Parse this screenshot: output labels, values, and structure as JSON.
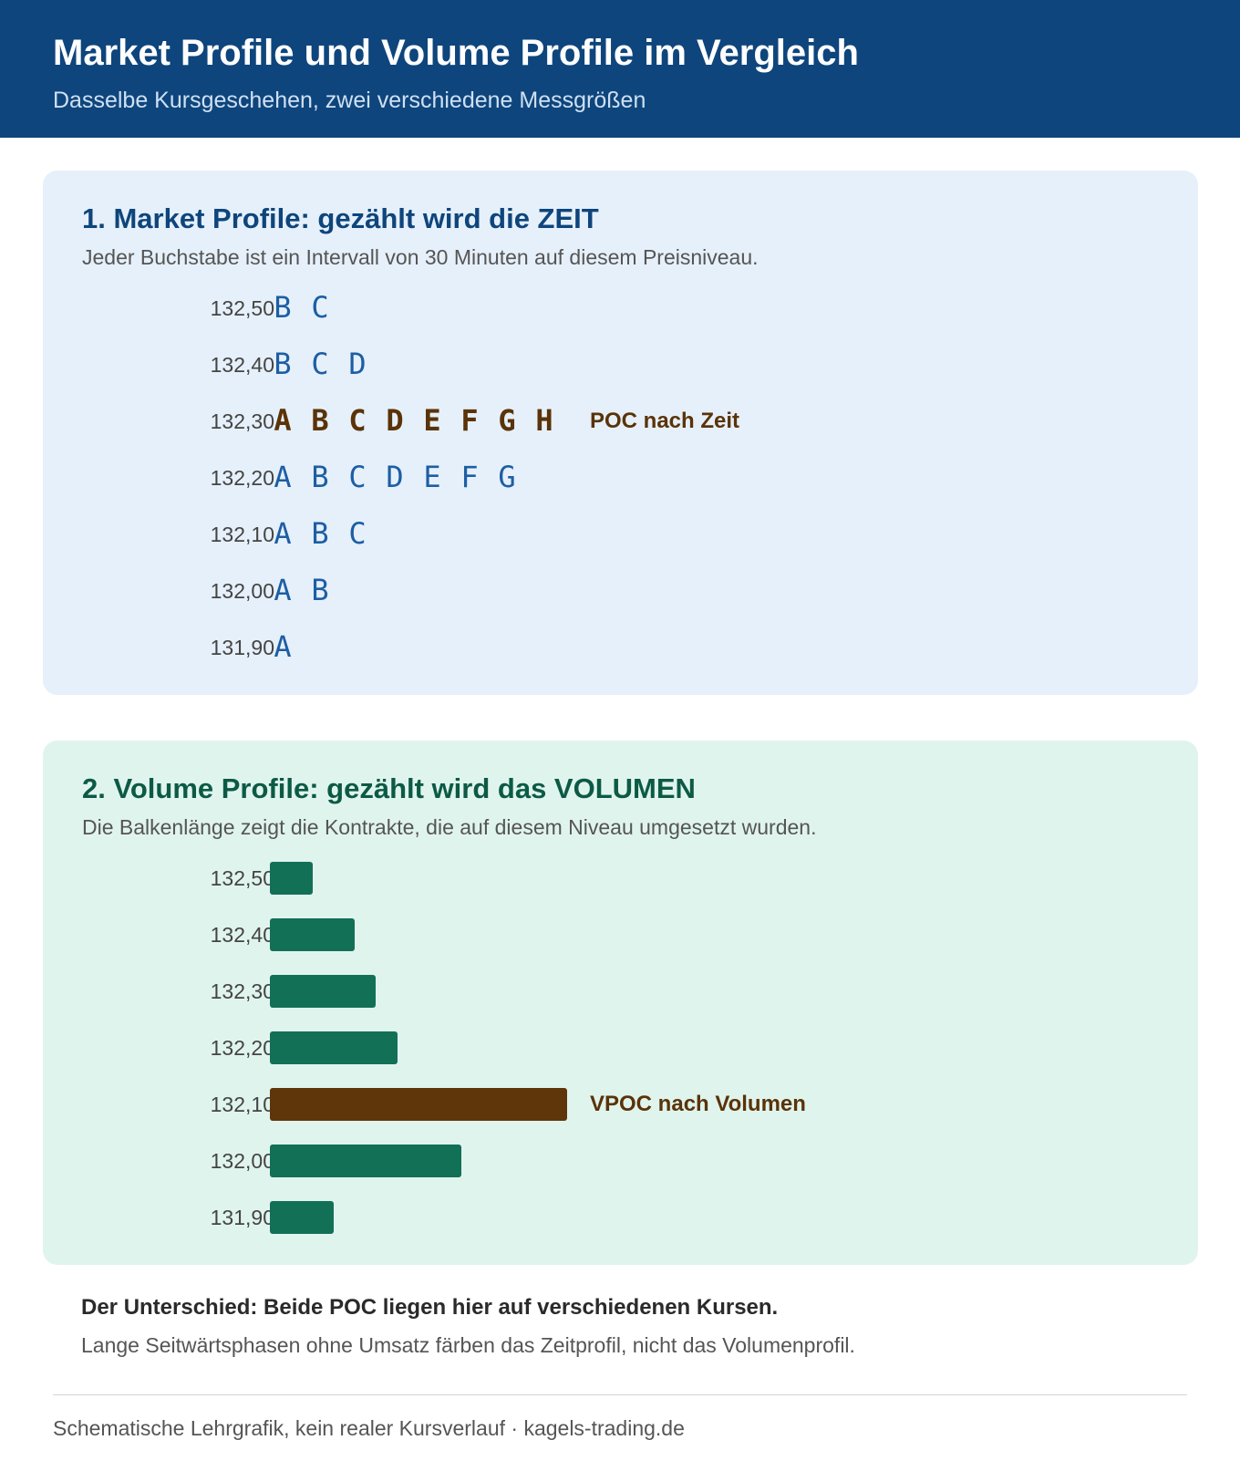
{
  "header": {
    "title": "Market Profile und Volume Profile im Vergleich",
    "subtitle": "Dasselbe Kursgeschehen, zwei verschiedene Messgrößen"
  },
  "chart_data": [
    {
      "type": "table",
      "title": "1. Market Profile: gezählt wird die ZEIT",
      "subtitle": "Jeder Buchstabe ist ein Intervall von 30 Minuten auf diesem Preisniveau.",
      "rows": [
        {
          "price": "132,50",
          "letters": [
            "B",
            "C"
          ]
        },
        {
          "price": "132,40",
          "letters": [
            "B",
            "C",
            "D"
          ]
        },
        {
          "price": "132,30",
          "letters": [
            "A",
            "B",
            "C",
            "D",
            "E",
            "F",
            "G",
            "H"
          ],
          "poc": true
        },
        {
          "price": "132,20",
          "letters": [
            "A",
            "B",
            "C",
            "D",
            "E",
            "F",
            "G"
          ]
        },
        {
          "price": "132,10",
          "letters": [
            "A",
            "B",
            "C"
          ]
        },
        {
          "price": "132,00",
          "letters": [
            "A",
            "B"
          ]
        },
        {
          "price": "131,90",
          "letters": [
            "A"
          ]
        }
      ],
      "poc_label": "POC nach Zeit",
      "colors": {
        "letter": "#1d5ea4",
        "poc": "#5a3308"
      }
    },
    {
      "type": "bar",
      "orientation": "horizontal",
      "title": "2. Volume Profile: gezählt wird das VOLUMEN",
      "subtitle": "Die Balkenlänge zeigt die Kontrakte, die auf diesem Niveau umgesetzt wurden.",
      "categories": [
        "132,50",
        "132,40",
        "132,30",
        "132,20",
        "132,10",
        "132,00",
        "131,90"
      ],
      "values": [
        2,
        4,
        5,
        6,
        14,
        9,
        3
      ],
      "xlim": [
        0,
        14
      ],
      "poc_index": 4,
      "poc_label": "VPOC nach Volumen",
      "colors": {
        "bar": "#127057",
        "poc": "#5e3609"
      }
    }
  ],
  "summary": {
    "title": "Der Unterschied: Beide POC liegen hier auf verschiedenen Kursen.",
    "text": "Lange Seitwärtsphasen ohne Umsatz färben das Zeitprofil, nicht das Volumenprofil."
  },
  "footer": "Schematische Lehrgrafik, kein realer Kursverlauf · kagels-trading.de"
}
